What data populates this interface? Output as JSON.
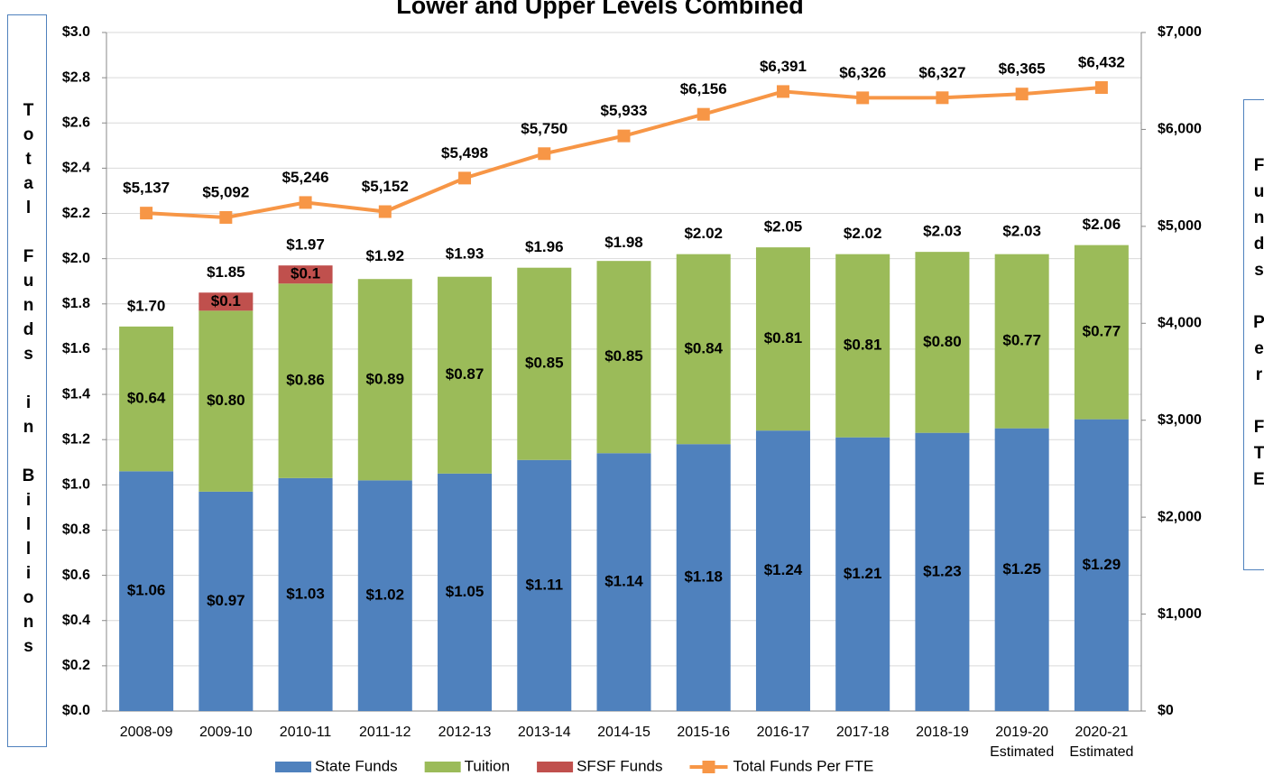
{
  "chart_data": {
    "type": "stacked-bar-line",
    "title": "Lower and Upper Levels Combined",
    "y_label": "Total Funds in Billions",
    "y2_label": "Funds Per FTE",
    "categories": [
      "2008-09",
      "2009-10",
      "2010-11",
      "2011-12",
      "2012-13",
      "2013-14",
      "2014-15",
      "2015-16",
      "2016-17",
      "2017-18",
      "2018-19",
      "2019-20",
      "2020-21"
    ],
    "category_sublabels": [
      null,
      null,
      null,
      null,
      null,
      null,
      null,
      null,
      null,
      null,
      null,
      "Estimated",
      "Estimated"
    ],
    "series": [
      {
        "name": "State Funds",
        "color": "#4f81bd",
        "kind": "bar",
        "values": [
          1.06,
          0.97,
          1.03,
          1.02,
          1.05,
          1.11,
          1.14,
          1.18,
          1.24,
          1.21,
          1.23,
          1.25,
          1.29
        ],
        "value_labels": [
          "$1.06",
          "$0.97",
          "$1.03",
          "$1.02",
          "$1.05",
          "$1.11",
          "$1.14",
          "$1.18",
          "$1.24",
          "$1.21",
          "$1.23",
          "$1.25",
          "$1.29"
        ]
      },
      {
        "name": "Tuition",
        "color": "#9bbb59",
        "kind": "bar",
        "values": [
          0.64,
          0.8,
          0.86,
          0.89,
          0.87,
          0.85,
          0.85,
          0.84,
          0.81,
          0.81,
          0.8,
          0.77,
          0.77
        ],
        "value_labels": [
          "$0.64",
          "$0.80",
          "$0.86",
          "$0.89",
          "$0.87",
          "$0.85",
          "$0.85",
          "$0.84",
          "$0.81",
          "$0.81",
          "$0.80",
          "$0.77",
          "$0.77"
        ]
      },
      {
        "name": "SFSF Funds",
        "color": "#c0504d",
        "kind": "bar",
        "values": [
          null,
          0.08,
          0.08,
          null,
          null,
          null,
          null,
          null,
          null,
          null,
          null,
          null,
          null
        ],
        "value_labels": [
          null,
          "$0.1",
          "$0.1",
          null,
          null,
          null,
          null,
          null,
          null,
          null,
          null,
          null,
          null
        ]
      },
      {
        "name": "Total Funds Per FTE",
        "color": "#f79646",
        "kind": "line",
        "axis": "y2",
        "values": [
          5137,
          5092,
          5246,
          5152,
          5498,
          5750,
          5933,
          6156,
          6391,
          6326,
          6327,
          6365,
          6432
        ],
        "value_labels": [
          "$5,137",
          "$5,092",
          "$5,246",
          "$5,152",
          "$5,498",
          "$5,750",
          "$5,933",
          "$6,156",
          "$6,391",
          "$6,326",
          "$6,327",
          "$6,365",
          "$6,432"
        ]
      }
    ],
    "totals": [
      1.7,
      1.85,
      1.97,
      1.92,
      1.93,
      1.96,
      1.98,
      2.02,
      2.05,
      2.02,
      2.03,
      2.03,
      2.06
    ],
    "total_labels": [
      "$1.70",
      "$1.85",
      "$1.97",
      "$1.92",
      "$1.93",
      "$1.96",
      "$1.98",
      "$2.02",
      "$2.05",
      "$2.02",
      "$2.03",
      "$2.03",
      "$2.06"
    ],
    "ylim": [
      0,
      3.0
    ],
    "yticks": [
      {
        "value": 0,
        "label": "$0.0"
      },
      {
        "value": 0.2,
        "label": "$0.2"
      },
      {
        "value": 0.4,
        "label": "$0.4"
      },
      {
        "value": 0.6,
        "label": "$0.6"
      },
      {
        "value": 0.8,
        "label": "$0.8"
      },
      {
        "value": 1.0,
        "label": "$1.0"
      },
      {
        "value": 1.2,
        "label": "$1.2"
      },
      {
        "value": 1.4,
        "label": "$1.4"
      },
      {
        "value": 1.6,
        "label": "$1.6"
      },
      {
        "value": 1.8,
        "label": "$1.8"
      },
      {
        "value": 2.0,
        "label": "$2.0"
      },
      {
        "value": 2.2,
        "label": "$2.2"
      },
      {
        "value": 2.4,
        "label": "$2.4"
      },
      {
        "value": 2.6,
        "label": "$2.6"
      },
      {
        "value": 2.8,
        "label": "$2.8"
      },
      {
        "value": 3.0,
        "label": "$3.0"
      }
    ],
    "y2lim": [
      0,
      7000
    ],
    "y2ticks": [
      {
        "value": 0,
        "label": "$0"
      },
      {
        "value": 1000,
        "label": "$1,000"
      },
      {
        "value": 2000,
        "label": "$2,000"
      },
      {
        "value": 3000,
        "label": "$3,000"
      },
      {
        "value": 4000,
        "label": "$4,000"
      },
      {
        "value": 5000,
        "label": "$5,000"
      },
      {
        "value": 6000,
        "label": "$6,000"
      },
      {
        "value": 7000,
        "label": "$7,000"
      }
    ],
    "grid": true,
    "legend": "bottom"
  }
}
